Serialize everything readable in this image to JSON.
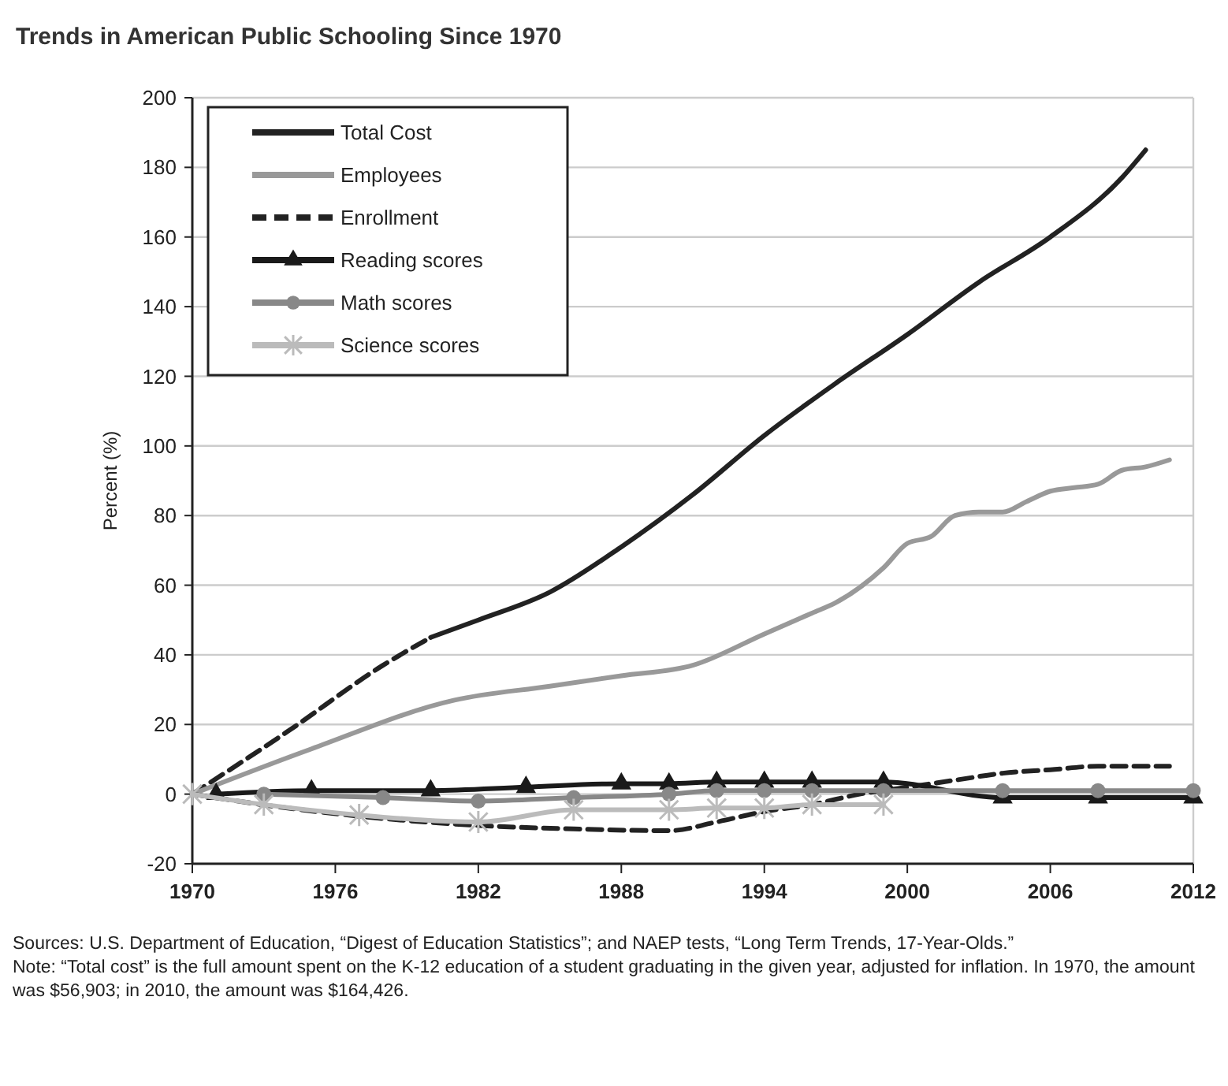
{
  "chart_data": {
    "type": "line",
    "title": "Trends in American Public Schooling Since 1970",
    "ylabel": "Percent (%)",
    "xlim": [
      1970,
      2012
    ],
    "xticks": [
      1970,
      1976,
      1982,
      1988,
      1994,
      2000,
      2006,
      2012
    ],
    "ylim": [
      -20,
      200
    ],
    "yticks": [
      -20,
      0,
      20,
      40,
      60,
      80,
      100,
      120,
      140,
      160,
      180,
      200
    ],
    "grid": "y",
    "legend": "top left",
    "series": [
      {
        "name": "Total Cost",
        "color": "#222222",
        "line_style": "solid",
        "marker": "none",
        "x": [
          1980,
          1982,
          1985,
          1988,
          1991,
          1994,
          1997,
          2000,
          2003,
          2006,
          2009,
          2010
        ],
        "values": [
          45,
          50,
          58,
          71,
          86,
          103,
          118,
          132,
          147,
          160,
          177,
          185
        ]
      },
      {
        "color": "#222222",
        "line_style": "dashed",
        "marker": "none",
        "x": [
          1970,
          1974,
          1978,
          1980
        ],
        "values": [
          0,
          18,
          37,
          45
        ]
      },
      {
        "name": "Employees",
        "color": "#999999",
        "line_style": "solid",
        "marker": "none",
        "x": [
          1970,
          1975,
          1981,
          1985,
          1988,
          1991,
          1994,
          1996,
          1997,
          1999,
          2000,
          2001,
          2002,
          2003,
          2004,
          2005,
          2006,
          2007,
          2008,
          2009,
          2010,
          2011
        ],
        "values": [
          0,
          13,
          27,
          31,
          34,
          37,
          46,
          52,
          55,
          65,
          72,
          74,
          80,
          81,
          81,
          84,
          87,
          88,
          89,
          93,
          94,
          96
        ]
      },
      {
        "name": "Enrollment",
        "color": "#222222",
        "line_style": "dashed",
        "marker": "none",
        "x": [
          1970,
          1974,
          1978,
          1982,
          1986,
          1990,
          1992,
          1994,
          1996,
          1998,
          2000,
          2002,
          2004,
          2006,
          2008,
          2011
        ],
        "values": [
          0,
          -4,
          -7,
          -9,
          -10,
          -10.5,
          -8,
          -5,
          -3,
          0,
          2,
          4,
          6,
          7,
          8,
          8
        ]
      },
      {
        "name": "Reading scores",
        "color": "#1a1a1a",
        "line_style": "solid",
        "marker": "triangle",
        "x": [
          1971,
          1975,
          1980,
          1984,
          1988,
          1990,
          1992,
          1994,
          1996,
          1999,
          2004,
          2008,
          2012
        ],
        "values": [
          0,
          1,
          1,
          2,
          3,
          3,
          3.5,
          3.5,
          3.5,
          3.5,
          -1,
          -1,
          -1
        ]
      },
      {
        "name": "Math scores",
        "color": "#888888",
        "line_style": "solid",
        "marker": "circle",
        "x": [
          1973,
          1978,
          1982,
          1986,
          1990,
          1992,
          1994,
          1996,
          1999,
          2004,
          2008,
          2012
        ],
        "values": [
          0,
          -1,
          -2,
          -1,
          0,
          1,
          1,
          1,
          1,
          1,
          1,
          1
        ]
      },
      {
        "name": "Science scores",
        "color": "#bbbbbb",
        "line_style": "solid",
        "marker": "cross",
        "x": [
          1970,
          1973,
          1977,
          1982,
          1986,
          1990,
          1992,
          1994,
          1996,
          1999
        ],
        "values": [
          0,
          -3,
          -6,
          -8,
          -4.5,
          -4.5,
          -4,
          -4,
          -3,
          -3
        ]
      }
    ],
    "annotations": [
      "Sources: U.S. Department of Education, “Digest of Education Statistics”; and NAEP tests, “Long Term Trends, 17-Year-Olds.”",
      "Note: “Total cost” is the full amount spent on the K-12 education of a student graduating in the given year, adjusted for inflation. In 1970, the amount was $56,903; in 2010, the amount was $164,426."
    ]
  }
}
